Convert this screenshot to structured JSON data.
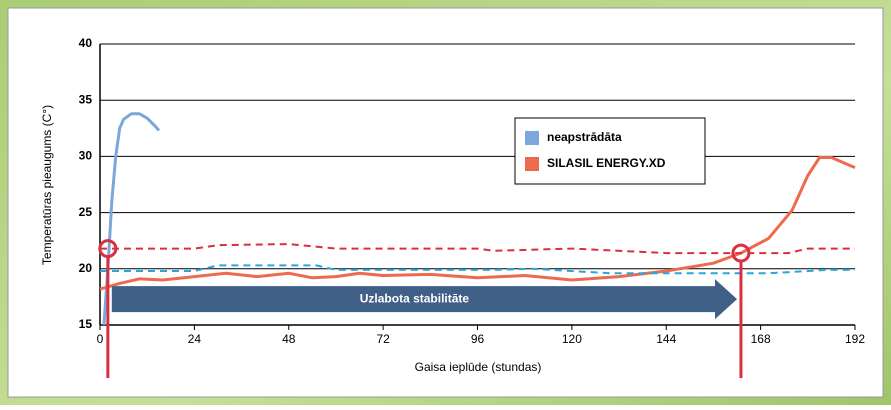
{
  "chart_data": {
    "type": "line",
    "y_label": "Temperatūras pieaugums (C°)",
    "x_label": "Gaisa ieplūde (stundas)",
    "xlim": [
      0,
      192
    ],
    "xticks": [
      0,
      24,
      48,
      72,
      96,
      120,
      144,
      168,
      192
    ],
    "ylim": [
      15,
      40
    ],
    "yticks": [
      15,
      20,
      25,
      30,
      35,
      40
    ],
    "grid": true,
    "legend": "upper right",
    "series": [
      {
        "name": "neapstrādāta",
        "color": "#7ba7da",
        "dash": false,
        "x": [
          1,
          2,
          3,
          4,
          5,
          6,
          8,
          10,
          12,
          14,
          15
        ],
        "values": [
          15,
          20,
          26,
          30,
          32.5,
          33.3,
          33.8,
          33.8,
          33.4,
          32.7,
          32.3
        ]
      },
      {
        "name": "SILASIL ENERGY.XD",
        "color": "#ee6a4f",
        "dash": false,
        "x": [
          0,
          5,
          10,
          16,
          24,
          32,
          40,
          48,
          54,
          60,
          66,
          72,
          84,
          96,
          108,
          120,
          132,
          144,
          156,
          163,
          170,
          176,
          180,
          183,
          186,
          192
        ],
        "values": [
          18.2,
          18.7,
          19.1,
          19.0,
          19.3,
          19.6,
          19.3,
          19.6,
          19.2,
          19.3,
          19.6,
          19.4,
          19.5,
          19.2,
          19.4,
          19.0,
          19.3,
          19.8,
          20.5,
          21.4,
          22.7,
          25.2,
          28.3,
          29.9,
          29.9,
          29.0
        ]
      },
      {
        "color": "#d9303f",
        "dash": true,
        "x": [
          0,
          10,
          24,
          30,
          48,
          60,
          96,
          100,
          120,
          144,
          175,
          180,
          192
        ],
        "values": [
          21.8,
          21.8,
          21.8,
          22.1,
          22.2,
          21.8,
          21.8,
          21.6,
          21.8,
          21.4,
          21.4,
          21.8,
          21.8
        ]
      },
      {
        "color": "#2aa6df",
        "dash": true,
        "x": [
          0,
          24,
          30,
          55,
          60,
          100,
          110,
          130,
          170,
          185,
          192
        ],
        "values": [
          19.8,
          19.8,
          20.3,
          20.3,
          19.9,
          19.9,
          20.0,
          19.6,
          19.6,
          19.9,
          19.9
        ]
      }
    ],
    "markers": [
      {
        "x": 2,
        "y": 21.8
      },
      {
        "x": 163,
        "y": 21.4
      }
    ],
    "annotations": [
      {
        "text": "Uzlabota stabilitāte",
        "x_start": 3,
        "x_end": 162,
        "y": 17.3
      }
    ]
  }
}
